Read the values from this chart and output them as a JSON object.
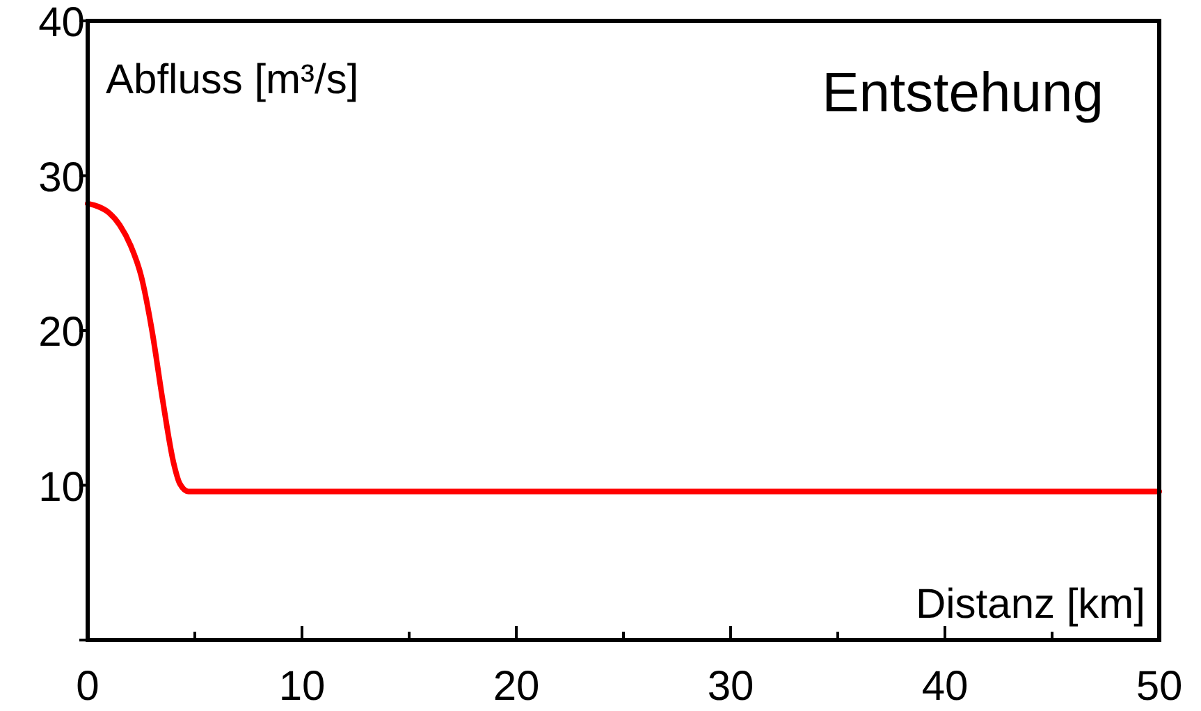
{
  "chart_data": {
    "type": "line",
    "title": "Entstehung",
    "xlabel": "Distanz [km]",
    "ylabel": "Abfluss [m³/s]",
    "x": [
      0,
      0.5,
      1,
      1.5,
      2,
      2.5,
      3,
      3.5,
      4,
      4.3,
      4.7,
      10,
      20,
      30,
      40,
      50
    ],
    "series": [
      {
        "color": "#ff0000",
        "values": [
          28.2,
          28,
          27.6,
          26.8,
          25.5,
          23.5,
          20,
          15.5,
          11.5,
          10.1,
          9.6,
          9.6,
          9.6,
          9.6,
          9.6,
          9.6
        ]
      }
    ],
    "xlim": [
      0,
      50
    ],
    "xticks": [
      0,
      {
        "value": 5,
        "label": null
      },
      10,
      {
        "value": 15,
        "label": null
      },
      20,
      {
        "value": 25,
        "label": null
      },
      30,
      {
        "value": 35,
        "label": null
      },
      40,
      {
        "value": 45,
        "label": null
      },
      50
    ],
    "ylim": [
      0,
      40
    ],
    "yticks": [
      {
        "value": 0,
        "label": null
      },
      10,
      20,
      30,
      40
    ],
    "marker": "none",
    "line_style": "solid"
  }
}
